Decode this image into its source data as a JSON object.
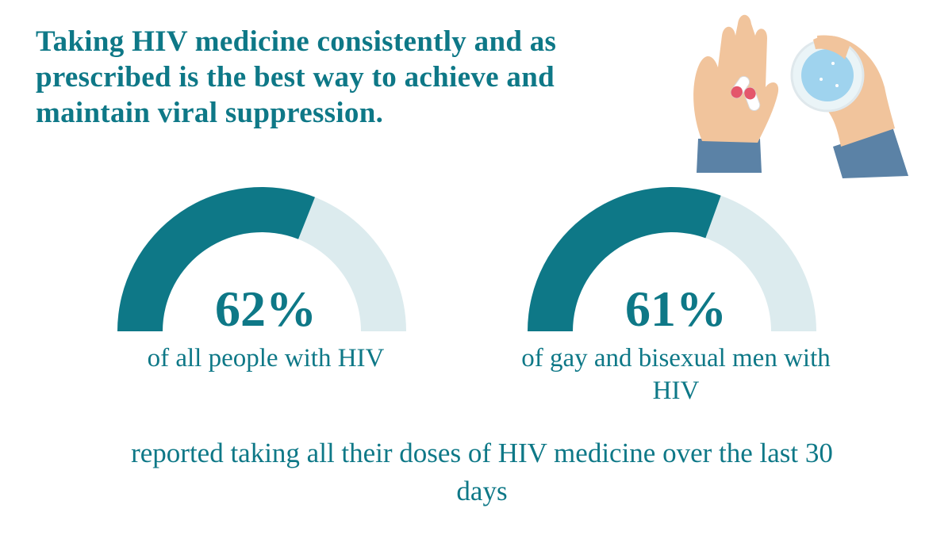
{
  "title": "Taking HIV medicine consistently and as prescribed is the best way to achieve and maintain viral suppression.",
  "chart_data": [
    {
      "type": "gauge",
      "values": [
        62
      ],
      "value_labels": [
        "62%"
      ],
      "caption": "of all people with HIV",
      "ylim": [
        0,
        100
      ],
      "color": "#0e7887",
      "track_color": "#dcebee"
    },
    {
      "type": "gauge",
      "values": [
        61
      ],
      "value_labels": [
        "61%"
      ],
      "caption": "of gay and bisexual men with HIV",
      "ylim": [
        0,
        100
      ],
      "color": "#0e7887",
      "track_color": "#dcebee"
    }
  ],
  "footer": "reported taking all their doses of HIV medicine over the last 30 days"
}
